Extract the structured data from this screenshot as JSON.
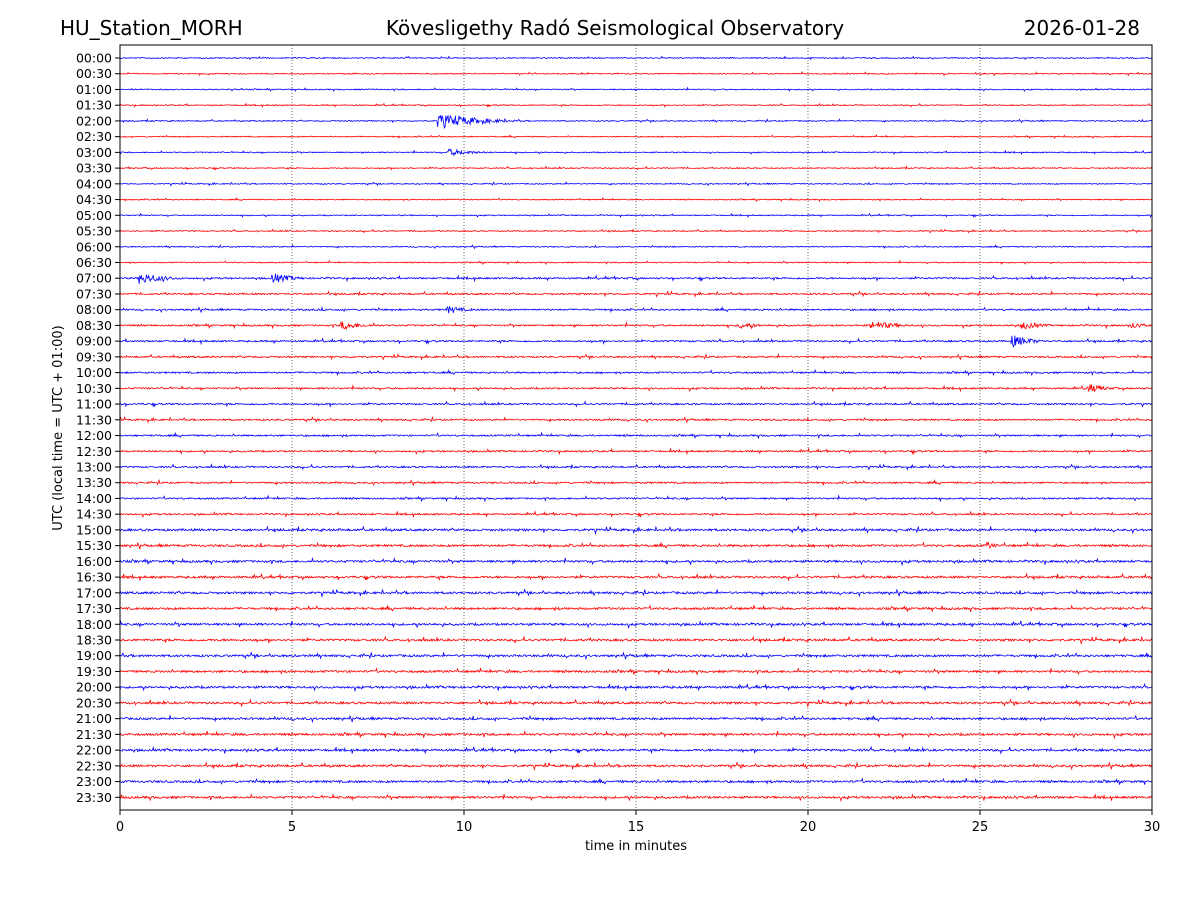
{
  "header": {
    "station": "HU_Station_MORH",
    "observatory": "Kövesligethy Radó Seismological Observatory",
    "date": "2026-01-28"
  },
  "chart_data": {
    "type": "line",
    "title": "Kövesligethy Radó Seismological Observatory",
    "xlabel": "time in minutes",
    "ylabel": "UTC (local time = UTC + 01:00)",
    "xlim": [
      0,
      30
    ],
    "xticks": [
      "0",
      "5",
      "10",
      "15",
      "20",
      "25",
      "30"
    ],
    "grid": "vertical dotted at x ticks",
    "rows": [
      "00:00",
      "00:30",
      "01:00",
      "01:30",
      "02:00",
      "02:30",
      "03:00",
      "03:30",
      "04:00",
      "04:30",
      "05:00",
      "05:30",
      "06:00",
      "06:30",
      "07:00",
      "07:30",
      "08:00",
      "08:30",
      "09:00",
      "09:30",
      "10:00",
      "10:30",
      "11:00",
      "11:30",
      "12:00",
      "12:30",
      "13:00",
      "13:30",
      "14:00",
      "14:30",
      "15:00",
      "15:30",
      "16:00",
      "16:30",
      "17:00",
      "17:30",
      "18:00",
      "18:30",
      "19:00",
      "19:30",
      "20:00",
      "20:30",
      "21:00",
      "21:30",
      "22:00",
      "22:30",
      "23:00",
      "23:30"
    ],
    "colors": [
      "#0000ff",
      "#ff0000"
    ],
    "noise_level": {
      "night": 1.0,
      "day": 1.8
    },
    "events": [
      {
        "row": "02:00",
        "minute": 9.2,
        "amplitude": 5,
        "duration": 3
      },
      {
        "row": "03:00",
        "minute": 9.5,
        "amplitude": 2.5,
        "duration": 1.5
      },
      {
        "row": "07:00",
        "minute": 0.55,
        "amplitude": 4,
        "duration": 1.5
      },
      {
        "row": "07:00",
        "minute": 4.4,
        "amplitude": 3.5,
        "duration": 1.2
      },
      {
        "row": "08:00",
        "minute": 9.5,
        "amplitude": 2.5,
        "duration": 1
      },
      {
        "row": "08:30",
        "minute": 6.4,
        "amplitude": 3,
        "duration": 1.2
      },
      {
        "row": "08:30",
        "minute": 18,
        "amplitude": 2,
        "duration": 1
      },
      {
        "row": "08:30",
        "minute": 21.8,
        "amplitude": 3,
        "duration": 1.5
      },
      {
        "row": "08:30",
        "minute": 26.2,
        "amplitude": 2.8,
        "duration": 1
      },
      {
        "row": "08:30",
        "minute": 29.4,
        "amplitude": 2.2,
        "duration": 0.6
      },
      {
        "row": "09:00",
        "minute": 25.9,
        "amplitude": 4.5,
        "duration": 1.2
      },
      {
        "row": "10:30",
        "minute": 28.1,
        "amplitude": 3,
        "duration": 1
      },
      {
        "row": "15:30",
        "minute": 25.2,
        "amplitude": 2.5,
        "duration": 0.4
      }
    ]
  }
}
